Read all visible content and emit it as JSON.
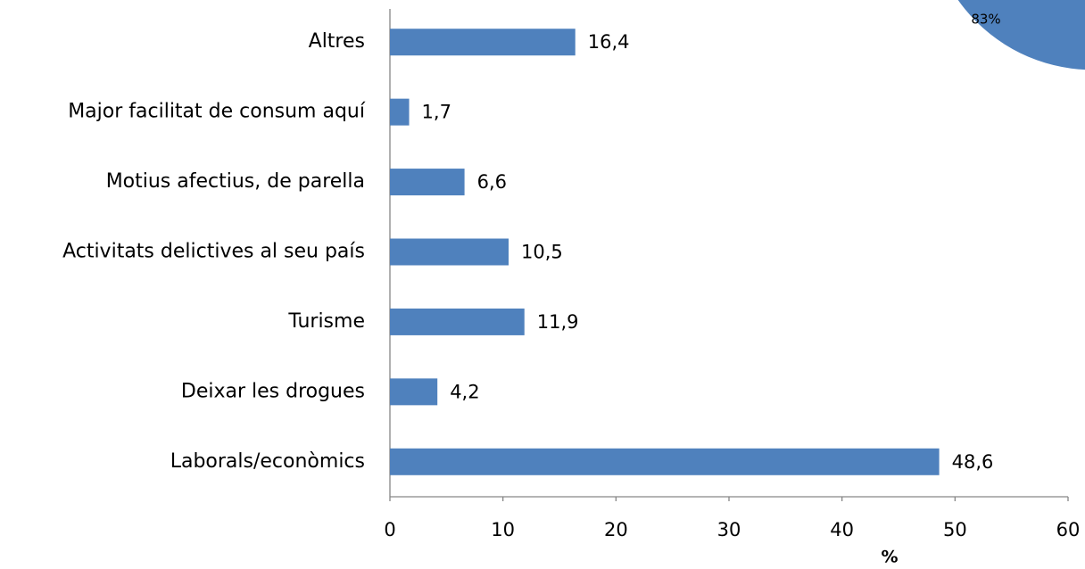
{
  "chart_data": [
    {
      "type": "bar",
      "orientation": "horizontal",
      "categories": [
        "Altres",
        "Major facilitat de consum aquí",
        "Motius afectius, de parella",
        "Activitats delictives al seu país",
        "Turisme",
        "Deixar les drogues",
        "Laborals/econòmics"
      ],
      "values": [
        16.4,
        1.7,
        6.6,
        10.5,
        11.9,
        4.2,
        48.6
      ],
      "value_labels": [
        "16,4",
        "1,7",
        "6,6",
        "10,5",
        "11,9",
        "4,2",
        "48,6"
      ],
      "color": "#4f81bd",
      "xlim": [
        0,
        60
      ],
      "xticks": [
        0,
        10,
        20,
        30,
        40,
        50,
        60
      ],
      "x_label": "%",
      "grid": false
    },
    {
      "type": "pie",
      "values": [
        83
      ],
      "value_labels": [
        "83%"
      ],
      "color": "#4f81bd"
    }
  ]
}
